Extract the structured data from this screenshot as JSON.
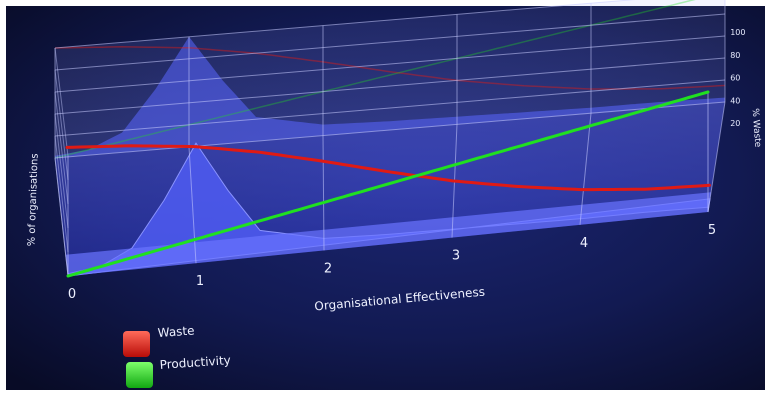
{
  "chart_data": {
    "type": "line",
    "style": "3d",
    "xlabel": "Organisational Effectiveness",
    "ylabel": "% of organisations",
    "y2label": "% Waste",
    "x_ticks": [
      "0",
      "1",
      "2",
      "3",
      "4",
      "5"
    ],
    "y2_ticks": [
      "20",
      "40",
      "60",
      "80",
      "100"
    ],
    "xlim": [
      0,
      5
    ],
    "y2lim": [
      0,
      100
    ],
    "grid": true,
    "legend_position": "bottom-left",
    "series": [
      {
        "name": "Waste",
        "color": "#e01a14",
        "x": [
          0,
          0.5,
          1,
          1.5,
          2,
          2.5,
          3,
          3.5,
          4,
          4.5,
          5
        ],
        "values": [
          100,
          96,
          90,
          80,
          67,
          53,
          40,
          30,
          22,
          17,
          15
        ]
      },
      {
        "name": "Productivity",
        "color": "#20e020",
        "x": [
          0,
          1,
          2,
          3,
          4,
          5
        ],
        "values": [
          0,
          20,
          40,
          60,
          80,
          100
        ]
      },
      {
        "name": "",
        "role": "distribution-surface",
        "color": "#5a66ff",
        "x": [
          0,
          0.25,
          0.5,
          0.75,
          1,
          1.25,
          1.5,
          2,
          2.5,
          3,
          3.5,
          4,
          4.5,
          5
        ],
        "values": [
          2,
          5,
          18,
          55,
          100,
          58,
          22,
          10,
          8,
          7,
          6,
          5,
          5,
          4
        ]
      }
    ]
  },
  "legend": {
    "items": [
      {
        "label": "Waste",
        "color": "#e01a14"
      },
      {
        "label": "Productivity",
        "color": "#20e020"
      }
    ]
  }
}
